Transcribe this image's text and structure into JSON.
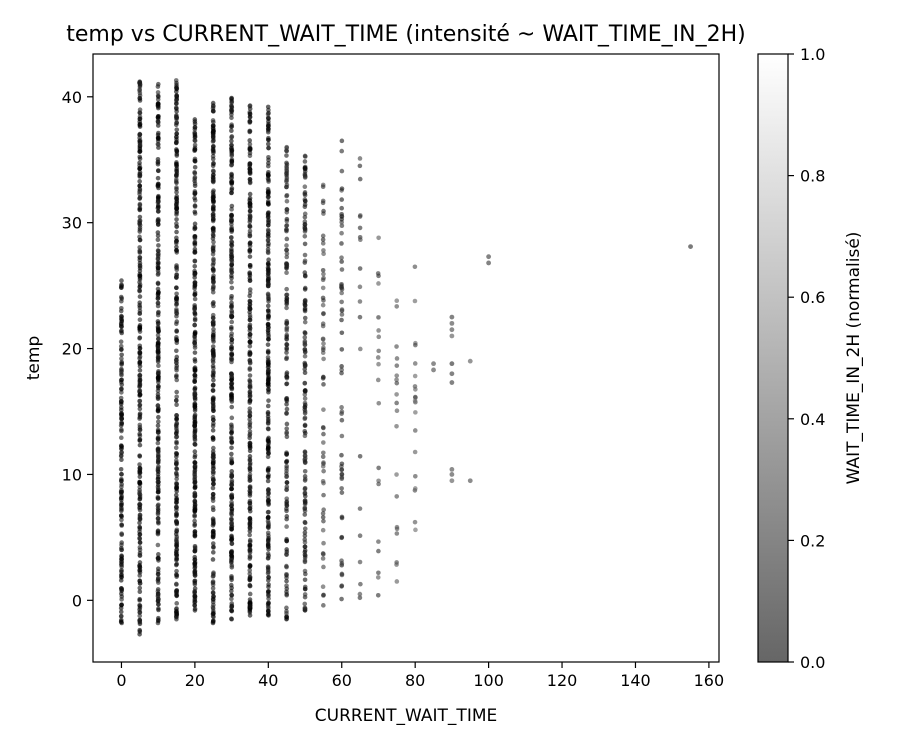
{
  "chart_data": {
    "type": "scatter",
    "title": "temp vs CURRENT_WAIT_TIME (intensité ~ WAIT_TIME_IN_2H)",
    "xlabel": "CURRENT_WAIT_TIME",
    "ylabel": "temp",
    "xlim": [
      -7.75,
      162.75
    ],
    "ylim": [
      -4.9,
      43.4
    ],
    "x_ticks": [
      0,
      20,
      40,
      60,
      80,
      100,
      120,
      140,
      160
    ],
    "y_ticks": [
      0,
      10,
      20,
      30,
      40
    ],
    "grid": false,
    "colorbar": {
      "label": "WAIT_TIME_IN_2H (normalisé)",
      "range": [
        0.0,
        1.0
      ],
      "ticks": [
        0.0,
        0.2,
        0.4,
        0.6,
        0.8,
        1.0
      ],
      "tick_labels": [
        "0.0",
        "0.2",
        "0.4",
        "0.6",
        "0.8",
        "1.0"
      ],
      "colormap": "gray",
      "alpha": 0.6
    },
    "columns": [
      {
        "x": 0,
        "y_min": -1.8,
        "y_max": 25.4,
        "intensity": 0.05,
        "density": "high"
      },
      {
        "x": 5,
        "y_min": -2.7,
        "y_max": 41.2,
        "intensity": 0.04,
        "density": "very-high"
      },
      {
        "x": 10,
        "y_min": -1.8,
        "y_max": 41.0,
        "intensity": 0.05,
        "density": "very-high"
      },
      {
        "x": 15,
        "y_min": -1.5,
        "y_max": 41.3,
        "intensity": 0.05,
        "density": "very-high"
      },
      {
        "x": 20,
        "y_min": -0.8,
        "y_max": 38.2,
        "intensity": 0.04,
        "density": "very-high"
      },
      {
        "x": 25,
        "y_min": -1.8,
        "y_max": 39.5,
        "intensity": 0.06,
        "density": "very-high"
      },
      {
        "x": 30,
        "y_min": -1.5,
        "y_max": 39.9,
        "intensity": 0.05,
        "density": "very-high"
      },
      {
        "x": 35,
        "y_min": -1.2,
        "y_max": 39.3,
        "intensity": 0.05,
        "density": "very-high"
      },
      {
        "x": 40,
        "y_min": -1.2,
        "y_max": 39.2,
        "intensity": 0.05,
        "density": "very-high"
      },
      {
        "x": 45,
        "y_min": -1.5,
        "y_max": 36.0,
        "intensity": 0.1,
        "density": "high"
      },
      {
        "x": 50,
        "y_min": -0.8,
        "y_max": 35.3,
        "intensity": 0.1,
        "density": "high"
      },
      {
        "x": 55,
        "y_min": -0.4,
        "y_max": 33.0,
        "intensity": 0.2,
        "density": "medium"
      },
      {
        "x": 60,
        "y_min": 0.1,
        "y_max": 36.5,
        "intensity": 0.15,
        "density": "medium"
      },
      {
        "x": 65,
        "y_min": 0.2,
        "y_max": 35.1,
        "intensity": 0.22,
        "density": "low"
      },
      {
        "x": 70,
        "y_min": 0.4,
        "y_max": 28.8,
        "intensity": 0.25,
        "density": "low"
      },
      {
        "x": 75,
        "y_min": 1.5,
        "y_max": 23.8,
        "intensity": 0.28,
        "density": "low"
      },
      {
        "x": 80,
        "y_min": 5.6,
        "y_max": 26.5,
        "intensity": 0.32,
        "density": "low"
      }
    ],
    "points": [
      {
        "x": 85,
        "y": 18.8,
        "intensity": 0.4
      },
      {
        "x": 85,
        "y": 18.3,
        "intensity": 0.4
      },
      {
        "x": 90,
        "y": 22.5,
        "intensity": 0.35
      },
      {
        "x": 90,
        "y": 22.0,
        "intensity": 0.4
      },
      {
        "x": 90,
        "y": 21.5,
        "intensity": 0.4
      },
      {
        "x": 90,
        "y": 21.0,
        "intensity": 0.45
      },
      {
        "x": 90,
        "y": 18.8,
        "intensity": 0.3
      },
      {
        "x": 90,
        "y": 18.0,
        "intensity": 0.35
      },
      {
        "x": 90,
        "y": 17.3,
        "intensity": 0.35
      },
      {
        "x": 90,
        "y": 10.4,
        "intensity": 0.4
      },
      {
        "x": 90,
        "y": 10.0,
        "intensity": 0.4
      },
      {
        "x": 90,
        "y": 9.5,
        "intensity": 0.45
      },
      {
        "x": 95,
        "y": 19.0,
        "intensity": 0.45
      },
      {
        "x": 95,
        "y": 9.5,
        "intensity": 0.4
      },
      {
        "x": 100,
        "y": 27.3,
        "intensity": 0.35
      },
      {
        "x": 100,
        "y": 26.8,
        "intensity": 0.35
      },
      {
        "x": 155,
        "y": 28.1,
        "intensity": 0.3
      }
    ]
  }
}
